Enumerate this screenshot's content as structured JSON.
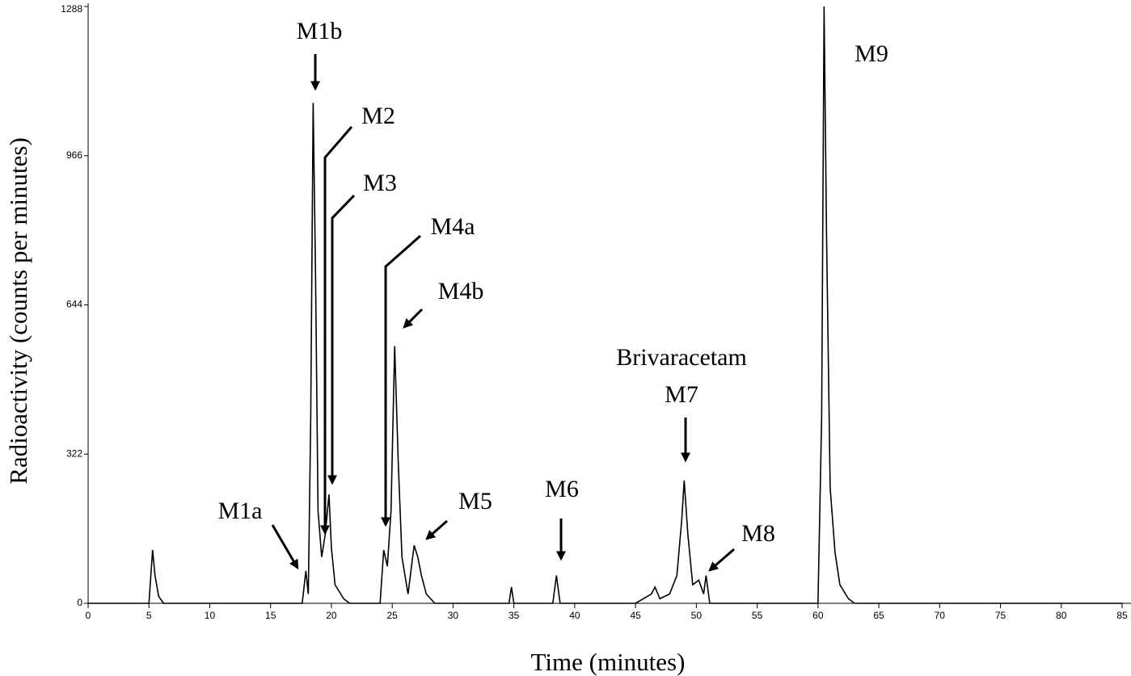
{
  "chart_data": {
    "type": "line",
    "x_label": "Time (minutes)",
    "y_label": "Radioactivity (counts per minutes)",
    "xlim": [
      0,
      85
    ],
    "ylim": [
      0,
      1288
    ],
    "xticks": [
      0,
      5,
      10,
      15,
      20,
      25,
      30,
      35,
      40,
      45,
      50,
      55,
      60,
      65,
      70,
      75,
      80,
      85
    ],
    "yticks": [
      0,
      322,
      644,
      966,
      1288
    ],
    "annotations": [
      "M1a",
      "M1b",
      "M2",
      "M3",
      "M4a",
      "M4b",
      "M5",
      "M6",
      "Brivaracetam",
      "M7",
      "M8",
      "M9"
    ],
    "series": [
      {
        "color": "#000000",
        "x": [
          0,
          5.0,
          5.3,
          5.5,
          5.8,
          6.2,
          17.6,
          17.9,
          18.1,
          18.3,
          18.5,
          18.7,
          18.9,
          19.2,
          19.5,
          19.8,
          20.0,
          20.3,
          21.0,
          21.5,
          24.0,
          24.3,
          24.6,
          24.9,
          25.2,
          25.5,
          25.8,
          26.3,
          26.8,
          27.1,
          27.4,
          27.8,
          28.5,
          34.6,
          34.8,
          35.0,
          38.2,
          38.5,
          38.8,
          45.0,
          46.3,
          46.6,
          47.0,
          47.8,
          48.4,
          48.8,
          49.0,
          49.3,
          49.7,
          50.2,
          50.6,
          50.8,
          51.1,
          60.0,
          60.3,
          60.5,
          60.7,
          61.0,
          61.4,
          61.8,
          62.5,
          63.0,
          85
        ],
        "values": [
          0,
          0,
          115,
          60,
          15,
          0,
          0,
          70,
          20,
          400,
          1080,
          700,
          200,
          100,
          150,
          235,
          120,
          40,
          10,
          0,
          0,
          115,
          80,
          200,
          555,
          300,
          100,
          20,
          125,
          100,
          60,
          20,
          0,
          0,
          35,
          0,
          0,
          60,
          0,
          0,
          20,
          35,
          10,
          20,
          60,
          180,
          265,
          150,
          40,
          50,
          20,
          60,
          0,
          0,
          400,
          1288,
          800,
          250,
          110,
          40,
          10,
          0,
          0
        ]
      }
    ]
  }
}
